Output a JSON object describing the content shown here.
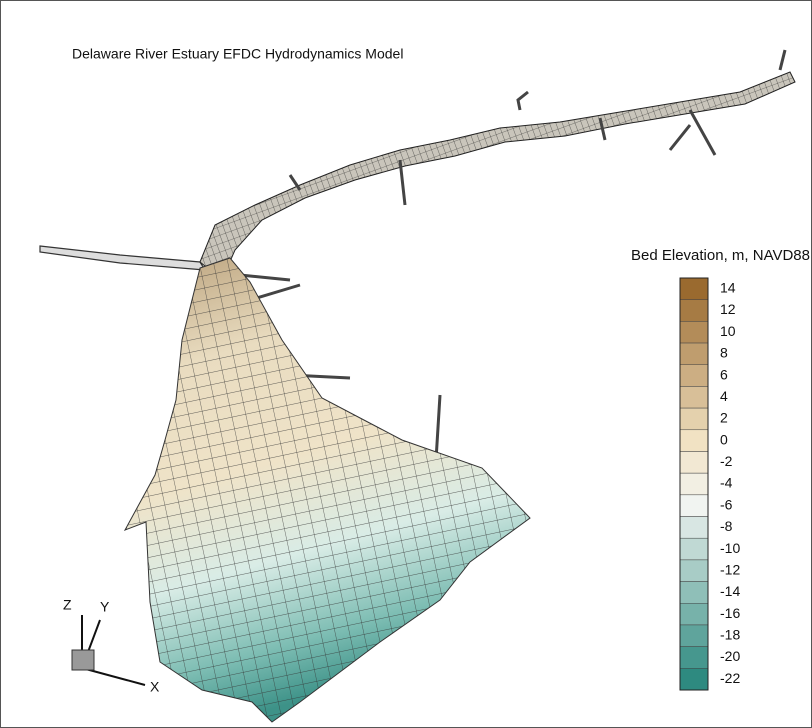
{
  "title": "Delaware River Estuary EFDC Hydrodynamics Model",
  "colorbar": {
    "title": "Bed Elevation, m, NAVD88",
    "levels": [
      14,
      12,
      10,
      8,
      6,
      4,
      2,
      0,
      -2,
      -4,
      -6,
      -8,
      -10,
      -12,
      -14,
      -16,
      -18,
      -20,
      -22
    ]
  },
  "axes": {
    "x": "X",
    "y": "Y",
    "z": "Z"
  }
}
